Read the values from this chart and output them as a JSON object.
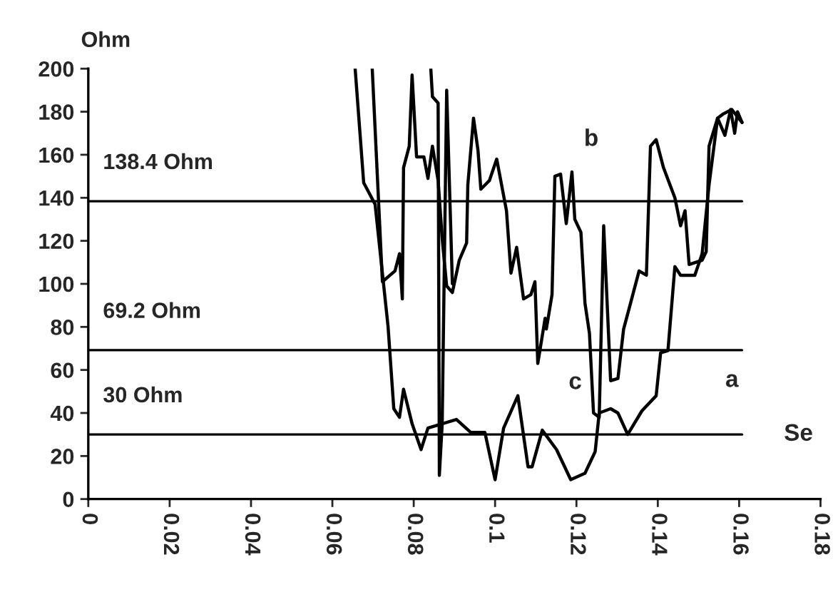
{
  "chart_data": {
    "type": "line",
    "ylabel": "Ohm",
    "xlim": [
      0,
      0.18
    ],
    "xticks": [
      0,
      0.02,
      0.04,
      0.06,
      0.08,
      0.1,
      0.12,
      0.14,
      0.16,
      0.18
    ],
    "ylim": [
      0,
      200
    ],
    "yticks": [
      0,
      20,
      40,
      60,
      80,
      100,
      120,
      140,
      160,
      180,
      200
    ],
    "grid": false,
    "legend": false,
    "marker": "none",
    "line_style": "solid",
    "series": [
      {
        "color": "#000000",
        "x": [
          0.0656,
          0.0677,
          0.0705,
          0.0737,
          0.0751,
          0.0765,
          0.0775,
          0.0796,
          0.0818,
          0.0835,
          0.087,
          0.0905,
          0.094,
          0.0975,
          0.1,
          0.1021,
          0.1056,
          0.1081,
          0.1091,
          0.1116,
          0.1151,
          0.1186,
          0.1221,
          0.1246,
          0.1256,
          0.1284,
          0.1302,
          0.1326,
          0.1361,
          0.1396,
          0.1407,
          0.1425,
          0.1442,
          0.1456,
          0.1491,
          0.1509,
          0.1526,
          0.1547,
          0.1565,
          0.1579,
          0.1589,
          0.1596,
          0.1607
        ],
        "values": [
          200,
          147,
          137,
          80,
          42,
          38,
          51,
          35,
          23,
          33,
          35,
          37,
          31,
          31,
          9,
          33,
          48,
          15,
          15,
          32,
          23,
          9,
          12,
          22,
          40,
          42,
          40,
          30,
          41,
          48,
          68,
          69,
          108,
          104,
          104,
          114,
          146,
          177,
          169,
          181,
          170,
          180,
          175
        ]
      },
      {
        "color": "#000000",
        "x": [
          0.0698,
          0.0723,
          0.0754,
          0.0765,
          0.0772,
          0.0775,
          0.0789,
          0.0796,
          0.0807,
          0.0825,
          0.0835,
          0.0846,
          0.086,
          0.087,
          0.0881,
          0.0895,
          0.0912,
          0.093,
          0.0933,
          0.0947,
          0.0958,
          0.0965,
          0.0986,
          0.1004,
          0.1028,
          0.1039,
          0.1053,
          0.107,
          0.1088,
          0.1098,
          0.1105,
          0.1123,
          0.1126,
          0.114,
          0.1147,
          0.1161,
          0.1175,
          0.1189,
          0.1196,
          0.1211,
          0.1221,
          0.1232,
          0.1242,
          0.1256,
          0.1267,
          0.1284,
          0.1302,
          0.1316,
          0.1333,
          0.1354,
          0.1372,
          0.1382,
          0.1396,
          0.1414,
          0.1442,
          0.1456,
          0.1467,
          0.1477,
          0.1509,
          0.1519,
          0.1526,
          0.1547,
          0.1561,
          0.1582,
          0.1607
        ],
        "values": [
          200,
          101,
          106,
          114,
          93,
          154,
          164,
          197,
          159,
          159,
          149,
          164,
          148,
          121,
          99,
          96,
          111,
          119,
          146,
          177,
          162,
          144,
          148,
          158,
          134,
          105,
          117,
          93,
          95,
          101,
          63,
          84,
          79,
          95,
          150,
          151,
          128,
          152,
          130,
          124,
          91,
          77,
          40,
          38,
          127,
          55,
          56,
          79,
          91,
          106,
          104,
          164,
          167,
          154,
          140,
          127,
          134,
          109,
          111,
          115,
          164,
          177,
          179,
          181,
          175
        ]
      },
      {
        "color": "#000000",
        "x": [
          0.0842,
          0.0846,
          0.086,
          0.0863,
          0.087,
          0.0881,
          0.0895
        ],
        "values": [
          200,
          187,
          184,
          11,
          35,
          190,
          100
        ]
      }
    ],
    "ref_lines": [
      {
        "axis": "y",
        "value": 138.4,
        "label": "138.4 Ohm",
        "color": "#000000"
      },
      {
        "axis": "y",
        "value": 69.2,
        "label": "69.2 Ohm",
        "color": "#000000"
      },
      {
        "axis": "y",
        "value": 30,
        "label": "30 Ohm",
        "color": "#000000"
      }
    ],
    "annotations": [
      "b",
      "c",
      "a",
      "Se"
    ]
  }
}
